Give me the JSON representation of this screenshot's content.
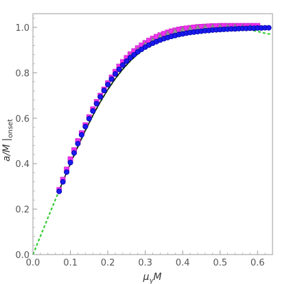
{
  "chart_data": {
    "type": "scatter",
    "title": "",
    "xlabel": "μγM",
    "xlabel_main": "μ",
    "xlabel_sub": "γ",
    "xlabel_tail": "M",
    "ylabel": "a/M | onset",
    "ylabel_main": "a/M |",
    "ylabel_sub": "onset",
    "xlim": [
      0.0,
      0.64
    ],
    "ylim": [
      0.0,
      1.06
    ],
    "xticks": [
      0.0,
      0.1,
      0.2,
      0.3,
      0.4,
      0.5,
      0.6
    ],
    "xtick_labels": [
      "0.0",
      "0.1",
      "0.2",
      "0.3",
      "0.4",
      "0.5",
      "0.6"
    ],
    "yticks": [
      0.0,
      0.2,
      0.4,
      0.6,
      0.8,
      1.0
    ],
    "ytick_labels": [
      "0.0",
      "0.2",
      "0.4",
      "0.6",
      "0.8",
      "1.0"
    ],
    "grid": false,
    "series": [
      {
        "style": "dashed-line",
        "color": "#33cc33",
        "x": [
          0.0,
          0.02,
          0.04,
          0.06,
          0.08,
          0.1,
          0.12,
          0.14,
          0.16,
          0.18,
          0.2,
          0.22,
          0.24,
          0.26,
          0.28,
          0.3,
          0.32,
          0.34,
          0.36,
          0.38,
          0.4,
          0.42,
          0.44,
          0.46,
          0.48,
          0.5,
          0.52,
          0.54,
          0.56,
          0.58,
          0.6,
          0.62,
          0.64
        ],
        "y": [
          0.0,
          0.081,
          0.162,
          0.242,
          0.322,
          0.4,
          0.475,
          0.546,
          0.612,
          0.672,
          0.726,
          0.774,
          0.816,
          0.852,
          0.883,
          0.909,
          0.931,
          0.948,
          0.962,
          0.973,
          0.981,
          0.988,
          0.993,
          0.996,
          0.998,
          1.0,
          1.001,
          1.0,
          0.997,
          0.99,
          0.982,
          0.974,
          0.968
        ]
      },
      {
        "style": "line",
        "color": "#111111",
        "x": [
          0.068,
          0.08,
          0.1,
          0.12,
          0.14,
          0.16,
          0.18,
          0.2,
          0.22,
          0.24,
          0.26,
          0.28,
          0.3,
          0.32,
          0.34,
          0.36,
          0.38,
          0.4,
          0.42,
          0.44,
          0.46,
          0.48,
          0.5,
          0.52,
          0.54,
          0.56,
          0.58,
          0.6,
          0.62
        ],
        "y": [
          0.275,
          0.322,
          0.4,
          0.475,
          0.546,
          0.612,
          0.672,
          0.726,
          0.774,
          0.816,
          0.852,
          0.883,
          0.909,
          0.931,
          0.948,
          0.962,
          0.973,
          0.981,
          0.988,
          0.993,
          0.996,
          0.998,
          1.0,
          1.001,
          1.0,
          0.999,
          0.998,
          0.997,
          0.996
        ]
      },
      {
        "style": "square-markers",
        "color": "#ee33ee",
        "stroke": "#cc22cc",
        "x": [
          0.07,
          0.08,
          0.09,
          0.1,
          0.11,
          0.12,
          0.13,
          0.14,
          0.15,
          0.16,
          0.17,
          0.18,
          0.19,
          0.2,
          0.21,
          0.22,
          0.23,
          0.24,
          0.25,
          0.26,
          0.27,
          0.28,
          0.29,
          0.3,
          0.31,
          0.32,
          0.33,
          0.34,
          0.35,
          0.36,
          0.37,
          0.38,
          0.39,
          0.4,
          0.41,
          0.42,
          0.43,
          0.44,
          0.45,
          0.46,
          0.47,
          0.48,
          0.49,
          0.5,
          0.51,
          0.52,
          0.53,
          0.54,
          0.55,
          0.56,
          0.57,
          0.58,
          0.59,
          0.6
        ],
        "y": [
          0.285,
          0.33,
          0.375,
          0.42,
          0.46,
          0.5,
          0.535,
          0.57,
          0.605,
          0.64,
          0.672,
          0.7,
          0.727,
          0.755,
          0.78,
          0.805,
          0.828,
          0.848,
          0.866,
          0.882,
          0.896,
          0.909,
          0.921,
          0.932,
          0.942,
          0.951,
          0.959,
          0.966,
          0.972,
          0.978,
          0.983,
          0.987,
          0.991,
          0.994,
          0.996,
          0.998,
          1.0,
          1.002,
          1.003,
          1.004,
          1.005,
          1.006,
          1.006,
          1.007,
          1.007,
          1.007,
          1.007,
          1.007,
          1.007,
          1.007,
          1.007,
          1.007,
          1.007,
          1.007
        ]
      },
      {
        "style": "triangle-markers",
        "color": "#999999",
        "stroke": "#777777",
        "x": [
          0.26,
          0.28,
          0.3,
          0.32,
          0.34,
          0.36,
          0.38,
          0.4,
          0.42,
          0.44,
          0.46,
          0.48,
          0.5,
          0.52,
          0.54,
          0.56,
          0.58
        ],
        "y": [
          0.873,
          0.9,
          0.924,
          0.944,
          0.96,
          0.972,
          0.982,
          0.99,
          0.995,
          0.999,
          1.001,
          1.002,
          1.003,
          1.003,
          1.003,
          1.002,
          1.001
        ]
      },
      {
        "style": "circle-markers",
        "color": "#1a1aee",
        "stroke": "#0000aa",
        "x": [
          0.07,
          0.08,
          0.09,
          0.1,
          0.11,
          0.12,
          0.13,
          0.14,
          0.15,
          0.16,
          0.17,
          0.18,
          0.19,
          0.2,
          0.21,
          0.22,
          0.23,
          0.24,
          0.25,
          0.26,
          0.27,
          0.28,
          0.29,
          0.3,
          0.31,
          0.32,
          0.33,
          0.34,
          0.35,
          0.36,
          0.37,
          0.38,
          0.39,
          0.4,
          0.41,
          0.42,
          0.43,
          0.44,
          0.45,
          0.46,
          0.47,
          0.48,
          0.49,
          0.5,
          0.51,
          0.52,
          0.53,
          0.54,
          0.55,
          0.56,
          0.57,
          0.58,
          0.59,
          0.6,
          0.61,
          0.62,
          0.63
        ],
        "y": [
          0.278,
          0.32,
          0.363,
          0.405,
          0.447,
          0.488,
          0.527,
          0.563,
          0.598,
          0.632,
          0.664,
          0.694,
          0.722,
          0.748,
          0.772,
          0.795,
          0.815,
          0.834,
          0.851,
          0.866,
          0.879,
          0.892,
          0.903,
          0.913,
          0.922,
          0.93,
          0.937,
          0.944,
          0.95,
          0.955,
          0.96,
          0.964,
          0.968,
          0.971,
          0.974,
          0.977,
          0.979,
          0.981,
          0.983,
          0.985,
          0.986,
          0.988,
          0.989,
          0.99,
          0.991,
          0.992,
          0.993,
          0.993,
          0.994,
          0.995,
          0.995,
          0.996,
          0.996,
          0.997,
          0.997,
          0.998,
          0.998
        ]
      }
    ]
  }
}
